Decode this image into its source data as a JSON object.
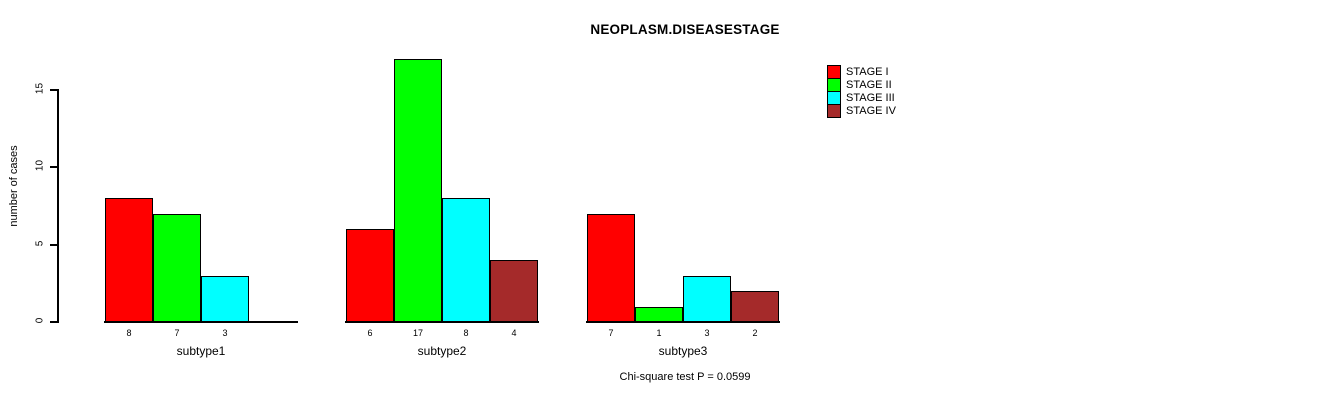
{
  "chart_data": {
    "type": "bar",
    "title": "NEOPLASM.DISEASESTAGE",
    "xlabel": "",
    "ylabel": "number of cases",
    "ylim": [
      0,
      15
    ],
    "yticks": [
      0,
      5,
      10,
      15
    ],
    "grid": false,
    "legend_position": "top-right",
    "categories": [
      "subtype1",
      "subtype2",
      "subtype3"
    ],
    "series": [
      {
        "name": "STAGE I",
        "color": "#ff0000",
        "values": [
          8,
          6,
          7
        ]
      },
      {
        "name": "STAGE II",
        "color": "#00ff00",
        "values": [
          7,
          17,
          1
        ]
      },
      {
        "name": "STAGE III",
        "color": "#00ffff",
        "values": [
          3,
          8,
          3
        ]
      },
      {
        "name": "STAGE IV",
        "color": "#a52a2a",
        "values": [
          0,
          4,
          2
        ]
      }
    ],
    "bar_labels": [
      [
        "8",
        "7",
        "3",
        ""
      ],
      [
        "6",
        "17",
        "8",
        "4"
      ],
      [
        "7",
        "1",
        "3",
        "2"
      ]
    ],
    "annotation": "Chi-square test P = 0.0599"
  }
}
